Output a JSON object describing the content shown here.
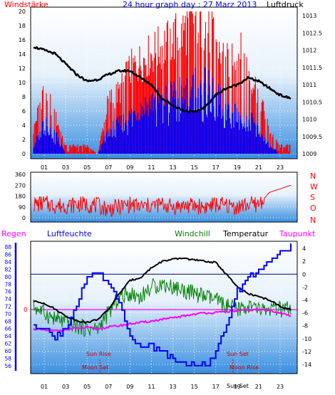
{
  "header": {
    "windstaerke": "Windstärke",
    "title": "24 hour graph day : 27 Marz 2013",
    "luftdruck": "Luftdruck"
  },
  "colors": {
    "wind_red": "#ff0000",
    "gust_blue": "#0000ff",
    "pressure": "#000000",
    "windchill": "#008000",
    "humidity": "#0000ff",
    "dewpoint": "#ff00ff",
    "temperature": "#000000",
    "rain_label": "#ff00ff",
    "gradient_top": "#ffffff",
    "gradient_bottom": "#3a8fe0"
  },
  "legend": {
    "regen": "Regen",
    "luftfeuchte": "Luftfeuchte",
    "windchill": "Windchill",
    "temperatur": "Temperatur",
    "taupunkt": "Taupunkt"
  },
  "annotations": {
    "sun_rise": "Sun Rise",
    "sun_set": "Sun Set",
    "moon_set": "Moon Set",
    "moon_rise": "Moon Rise",
    "sun_set_short": "Sun Set"
  },
  "direction_letters": [
    "N",
    "W",
    "S",
    "O",
    "N"
  ],
  "rain_zero": "0",
  "chart_data": [
    {
      "type": "bar",
      "id": "wind_pressure",
      "x_ticks": [
        "01",
        "03",
        "05",
        "07",
        "09",
        "11",
        "13",
        "15",
        "17",
        "19",
        "21",
        "23"
      ],
      "y_left_label": "Windstärke",
      "y_left_ticks": [
        0,
        2,
        4,
        6,
        8,
        10,
        12,
        14,
        16,
        18,
        20
      ],
      "y_left_lim": [
        0,
        20
      ],
      "y_right_label": "Luftdruck",
      "y_right_ticks": [
        1009,
        1009.5,
        1010,
        1010.5,
        1011,
        1011.5,
        1012,
        1012.5,
        1013
      ],
      "y_right_lim": [
        1009,
        1013
      ],
      "series": [
        {
          "name": "Wind",
          "x": [
            0,
            1,
            2,
            3,
            4,
            5,
            6,
            7,
            8,
            9,
            10,
            11,
            12,
            13,
            14,
            15,
            16,
            17,
            18,
            19,
            20,
            21,
            22,
            23,
            24
          ],
          "values": [
            3,
            9,
            5,
            1,
            1,
            1,
            0,
            7,
            8,
            11,
            12,
            13,
            14,
            15,
            16,
            18,
            17,
            15,
            12,
            14,
            11,
            8,
            3,
            1,
            1
          ]
        },
        {
          "name": "Gust",
          "x": [
            0,
            1,
            2,
            3,
            4,
            5,
            6,
            7,
            8,
            9,
            10,
            11,
            12,
            13,
            14,
            15,
            16,
            17,
            18,
            19,
            20,
            21,
            22,
            23,
            24
          ],
          "values": [
            1,
            4,
            3,
            0,
            0,
            0,
            0,
            3,
            4,
            5,
            6,
            7,
            7,
            8,
            8,
            9,
            9,
            8,
            6,
            7,
            5,
            3,
            1,
            0,
            0
          ]
        },
        {
          "name": "Luftdruck",
          "x": [
            0,
            1,
            2,
            3,
            4,
            5,
            6,
            7,
            8,
            9,
            10,
            11,
            12,
            13,
            14,
            15,
            16,
            17,
            18,
            19,
            20,
            21,
            22,
            23,
            24
          ],
          "values": [
            1012.1,
            1012.0,
            1011.9,
            1011.6,
            1011.3,
            1011.1,
            1011.15,
            1011.3,
            1011.4,
            1011.4,
            1011.2,
            1011.0,
            1010.6,
            1010.4,
            1010.25,
            1010.2,
            1010.35,
            1010.7,
            1010.9,
            1011.0,
            1011.2,
            1011.1,
            1010.9,
            1010.7,
            1010.6
          ]
        }
      ]
    },
    {
      "type": "line",
      "id": "wind_direction",
      "y_ticks": [
        0,
        90,
        180,
        270,
        360
      ],
      "y_lim": [
        0,
        360
      ],
      "series": [
        {
          "name": "Windrichtung",
          "x": [
            0,
            1,
            2,
            3,
            4,
            5,
            6,
            7,
            8,
            9,
            10,
            11,
            12,
            13,
            14,
            15,
            16,
            17,
            18,
            19,
            20,
            21,
            22,
            23,
            24
          ],
          "values": [
            110,
            120,
            100,
            100,
            110,
            110,
            100,
            70,
            90,
            110,
            90,
            100,
            110,
            90,
            100,
            100,
            90,
            110,
            100,
            90,
            110,
            110,
            210,
            240,
            270
          ]
        }
      ]
    },
    {
      "type": "line",
      "id": "temperature_humidity",
      "x_ticks": [
        "01",
        "03",
        "05",
        "07",
        "09",
        "11",
        "13",
        "15",
        "17",
        "19",
        "21",
        "23"
      ],
      "y_left_label": "Luftfeuchte",
      "y_left_ticks": [
        56,
        58,
        60,
        62,
        64,
        66,
        68,
        70,
        72,
        74,
        76,
        78,
        80,
        82,
        84,
        86,
        88
      ],
      "y_left_lim": [
        55,
        89
      ],
      "y_right_ticks": [
        4,
        2,
        0,
        -2,
        -4,
        -6,
        -8,
        -10,
        -12,
        -14
      ],
      "y_right_lim": [
        -15,
        5
      ],
      "series": [
        {
          "name": "Luftfeuchte",
          "x": [
            0,
            1,
            2,
            3,
            4,
            5,
            6,
            7,
            8,
            9,
            10,
            11,
            12,
            13,
            14,
            15,
            16,
            17,
            18,
            19,
            20,
            21,
            22,
            23,
            24
          ],
          "values": [
            67,
            66,
            64,
            66,
            72,
            80,
            81,
            78,
            73,
            64,
            61,
            61,
            60,
            58,
            57,
            56,
            56,
            60,
            67,
            76,
            80,
            82,
            84,
            86,
            88
          ]
        },
        {
          "name": "Temperatur",
          "x": [
            0,
            1,
            2,
            3,
            4,
            5,
            6,
            7,
            8,
            9,
            10,
            11,
            12,
            13,
            14,
            15,
            16,
            17,
            18,
            19,
            20,
            21,
            22,
            23,
            24
          ],
          "values": [
            -4.2,
            -4.5,
            -5.4,
            -6.5,
            -7.2,
            -7.5,
            -7.0,
            -5.5,
            -3.0,
            -1.0,
            -0.5,
            1.0,
            2.0,
            2.3,
            2.5,
            2.2,
            2.0,
            1.8,
            0.0,
            -2.0,
            -3.0,
            -3.5,
            -4.0,
            -5.0,
            -5.5
          ]
        },
        {
          "name": "Windchill",
          "x": [
            0,
            1,
            2,
            3,
            4,
            5,
            6,
            7,
            8,
            9,
            10,
            11,
            12,
            13,
            14,
            15,
            16,
            17,
            18,
            19,
            20,
            21,
            22,
            23,
            24
          ],
          "values": [
            -5.0,
            -6.0,
            -7.0,
            -7.5,
            -8.0,
            -8.5,
            -8.5,
            -6.0,
            -3.5,
            -3.0,
            -3.5,
            -2.0,
            -1.5,
            -2.0,
            -2.5,
            -3.0,
            -3.5,
            -4.0,
            -5.0,
            -5.5,
            -5.0,
            -5.5,
            -5.5,
            -5.5,
            -5.5
          ]
        },
        {
          "name": "Taupunkt",
          "x": [
            0,
            1,
            2,
            3,
            4,
            5,
            6,
            7,
            8,
            9,
            10,
            11,
            12,
            13,
            14,
            15,
            16,
            17,
            18,
            19,
            20,
            21,
            22,
            23,
            24
          ],
          "values": [
            -8.5,
            -8.7,
            -8.8,
            -8.6,
            -8.4,
            -8.3,
            -8.5,
            -8.2,
            -8.0,
            -7.7,
            -7.5,
            -7.3,
            -7.0,
            -6.8,
            -6.5,
            -6.2,
            -6.0,
            -6.0,
            -5.8,
            -5.7,
            -5.6,
            -5.5,
            -5.6,
            -6.0,
            -6.5
          ]
        },
        {
          "name": "Regen",
          "x": [
            0,
            24
          ],
          "values": [
            0,
            0
          ]
        }
      ]
    }
  ]
}
